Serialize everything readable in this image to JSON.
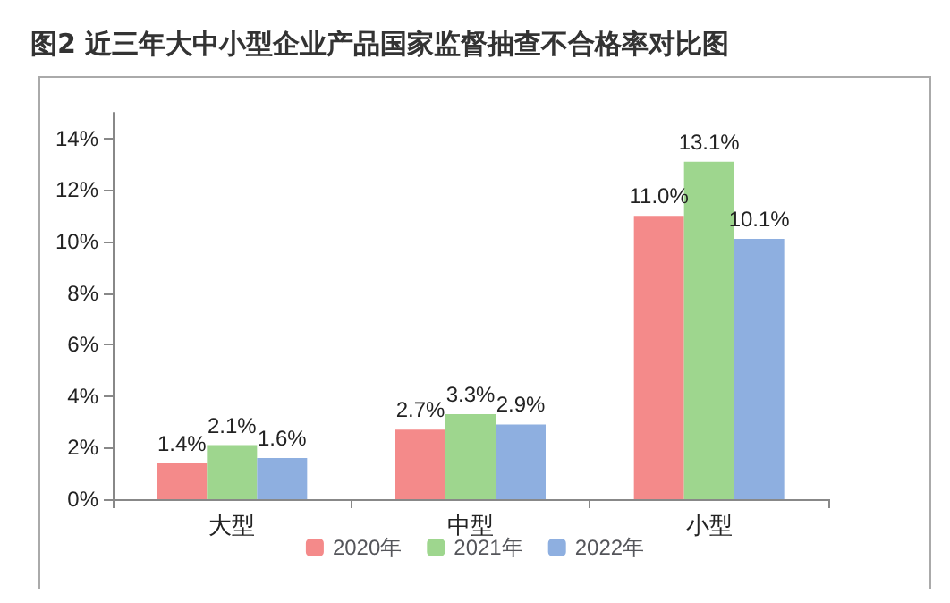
{
  "chart_data": {
    "type": "bar",
    "title": "图2 近三年大中小型企业产品国家监督抽查不合格率对比图",
    "categories": [
      "大型",
      "中型",
      "小型"
    ],
    "series": [
      {
        "name": "2020年",
        "color": "#f48a8a",
        "values": [
          1.4,
          2.7,
          11.0
        ],
        "value_labels": [
          "1.4%",
          "2.7%",
          "11.0%"
        ]
      },
      {
        "name": "2021年",
        "color": "#9ed68e",
        "values": [
          2.1,
          3.3,
          13.1
        ],
        "value_labels": [
          "2.1%",
          "3.3%",
          "13.1%"
        ]
      },
      {
        "name": "2022年",
        "color": "#8eafe0",
        "values": [
          1.6,
          2.9,
          10.1
        ],
        "value_labels": [
          "1.6%",
          "2.9%",
          "10.1%"
        ]
      }
    ],
    "ylim": [
      0,
      15
    ],
    "yticks": [
      {
        "value": 0,
        "label": "0%"
      },
      {
        "value": 2,
        "label": "2%"
      },
      {
        "value": 4,
        "label": "4%"
      },
      {
        "value": 6,
        "label": "6%"
      },
      {
        "value": 8,
        "label": "8%"
      },
      {
        "value": 10,
        "label": "10%"
      },
      {
        "value": 12,
        "label": "12%"
      },
      {
        "value": 14,
        "label": "14%"
      }
    ],
    "grid": false,
    "legend": "bottom"
  }
}
